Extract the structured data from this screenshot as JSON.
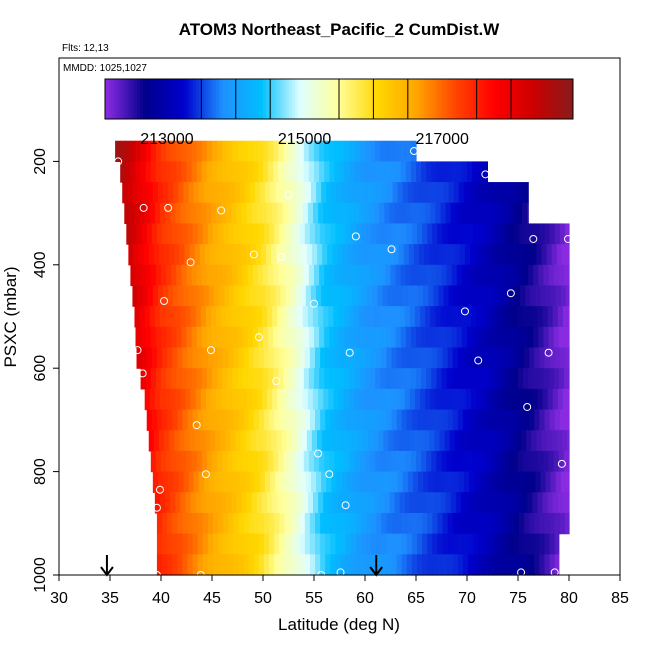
{
  "chart_data": {
    "type": "heatmap",
    "title": "ATOM3 Northeast_Pacific_2 CumDist.W",
    "subtitle_flts": "Flts: 12,13",
    "subtitle_mmdd": "MMDD: 1025,1027",
    "xlabel": "Latitude (deg N)",
    "ylabel": "PSXC (mbar)",
    "xlim": [
      30,
      85
    ],
    "ylim": [
      1000,
      0
    ],
    "x_ticks": [
      30,
      35,
      40,
      45,
      50,
      55,
      60,
      65,
      70,
      75,
      80,
      85
    ],
    "y_ticks": [
      200,
      400,
      600,
      800,
      1000
    ],
    "colorbar": {
      "range": [
        212100,
        218900
      ],
      "tick_values": [
        213000,
        215000,
        217000
      ],
      "tick_labels": [
        "213000",
        "215000",
        "217000"
      ],
      "divisions": [
        214000,
        216000,
        218000,
        214500,
        215500,
        216500,
        217500,
        213500
      ]
    },
    "colors": [
      "#8a2be2",
      "#00008b",
      "#0000cd",
      "#1e90ff",
      "#00bfff",
      "#e0ffff",
      "#ffff99",
      "#ffd700",
      "#ffa500",
      "#ff4500",
      "#ff0000",
      "#cc0000",
      "#8b1a1a"
    ],
    "rows": [
      {
        "p": 180,
        "lat_start": 35.5,
        "lat_end": 65
      },
      {
        "p": 220,
        "lat_start": 36.0,
        "lat_end": 72
      },
      {
        "p": 260,
        "lat_start": 36.2,
        "lat_end": 76
      },
      {
        "p": 300,
        "lat_start": 36.4,
        "lat_end": 76
      },
      {
        "p": 340,
        "lat_start": 36.6,
        "lat_end": 80
      },
      {
        "p": 380,
        "lat_start": 36.8,
        "lat_end": 80
      },
      {
        "p": 420,
        "lat_start": 37.0,
        "lat_end": 80
      },
      {
        "p": 460,
        "lat_start": 37.2,
        "lat_end": 80
      },
      {
        "p": 500,
        "lat_start": 37.4,
        "lat_end": 80
      },
      {
        "p": 540,
        "lat_start": 37.5,
        "lat_end": 80
      },
      {
        "p": 580,
        "lat_start": 37.6,
        "lat_end": 80
      },
      {
        "p": 620,
        "lat_start": 38.0,
        "lat_end": 80
      },
      {
        "p": 660,
        "lat_start": 38.4,
        "lat_end": 80
      },
      {
        "p": 700,
        "lat_start": 38.6,
        "lat_end": 80
      },
      {
        "p": 740,
        "lat_start": 38.8,
        "lat_end": 80
      },
      {
        "p": 780,
        "lat_start": 39.0,
        "lat_end": 80
      },
      {
        "p": 820,
        "lat_start": 39.2,
        "lat_end": 80
      },
      {
        "p": 860,
        "lat_start": 39.4,
        "lat_end": 80
      },
      {
        "p": 900,
        "lat_start": 39.6,
        "lat_end": 80
      },
      {
        "p": 940,
        "lat_start": 39.6,
        "lat_end": 79
      },
      {
        "p": 980,
        "lat_start": 39.6,
        "lat_end": 79
      }
    ],
    "points": [
      {
        "lat": 35.8,
        "p": 200
      },
      {
        "lat": 64.8,
        "p": 180
      },
      {
        "lat": 71.8,
        "p": 225
      },
      {
        "lat": 38.3,
        "p": 290
      },
      {
        "lat": 40.7,
        "p": 290
      },
      {
        "lat": 45.9,
        "p": 295
      },
      {
        "lat": 52.5,
        "p": 265
      },
      {
        "lat": 59.1,
        "p": 345
      },
      {
        "lat": 62.6,
        "p": 370
      },
      {
        "lat": 76.5,
        "p": 350
      },
      {
        "lat": 79.9,
        "p": 350
      },
      {
        "lat": 42.9,
        "p": 395
      },
      {
        "lat": 49.1,
        "p": 380
      },
      {
        "lat": 51.8,
        "p": 385
      },
      {
        "lat": 40.3,
        "p": 470
      },
      {
        "lat": 55.0,
        "p": 475
      },
      {
        "lat": 69.8,
        "p": 490
      },
      {
        "lat": 74.3,
        "p": 455
      },
      {
        "lat": 37.7,
        "p": 565
      },
      {
        "lat": 44.9,
        "p": 565
      },
      {
        "lat": 49.6,
        "p": 540
      },
      {
        "lat": 58.5,
        "p": 570
      },
      {
        "lat": 71.1,
        "p": 585
      },
      {
        "lat": 78.0,
        "p": 570
      },
      {
        "lat": 38.2,
        "p": 610
      },
      {
        "lat": 51.3,
        "p": 625
      },
      {
        "lat": 43.5,
        "p": 710
      },
      {
        "lat": 75.9,
        "p": 675
      },
      {
        "lat": 55.4,
        "p": 765
      },
      {
        "lat": 44.4,
        "p": 805
      },
      {
        "lat": 56.5,
        "p": 805
      },
      {
        "lat": 79.3,
        "p": 785
      },
      {
        "lat": 39.9,
        "p": 835
      },
      {
        "lat": 58.1,
        "p": 865
      },
      {
        "lat": 39.6,
        "p": 870
      },
      {
        "lat": 39.6,
        "p": 1000
      },
      {
        "lat": 43.9,
        "p": 1000
      },
      {
        "lat": 55.7,
        "p": 1000
      },
      {
        "lat": 57.6,
        "p": 995
      },
      {
        "lat": 75.3,
        "p": 995
      },
      {
        "lat": 78.6,
        "p": 995
      }
    ],
    "arrows_lat": [
      34.7,
      61.1
    ]
  }
}
